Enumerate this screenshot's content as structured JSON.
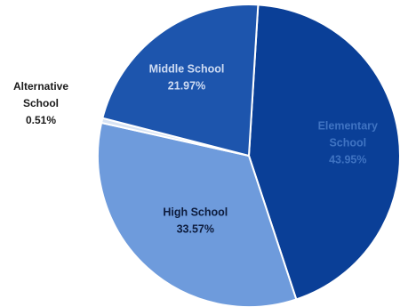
{
  "chart_data": {
    "type": "pie",
    "start_slice": "Elementary School",
    "direction": "clockwise",
    "legend": "none",
    "slices": [
      {
        "name": "Elementary School",
        "label_lines": [
          "Elementary",
          "School"
        ],
        "percent_label": "43.95%",
        "value": 43.95,
        "color": "#0a3f97",
        "label_color": "#3f73c2"
      },
      {
        "name": "High School",
        "label_lines": [
          "High School"
        ],
        "percent_label": "33.57%",
        "value": 33.57,
        "color": "#6e9bdc",
        "label_color": "#0d1c3d"
      },
      {
        "name": "Alternative School",
        "label_lines": [
          "Alternative",
          "School"
        ],
        "percent_label": "0.51%",
        "value": 0.51,
        "color": "#d7e3f4",
        "label_color": "#1a1a1a"
      },
      {
        "name": "Middle School",
        "label_lines": [
          "Middle School"
        ],
        "percent_label": "21.97%",
        "value": 21.97,
        "color": "#1d55ad",
        "label_color": "#cfdcf3"
      }
    ]
  }
}
